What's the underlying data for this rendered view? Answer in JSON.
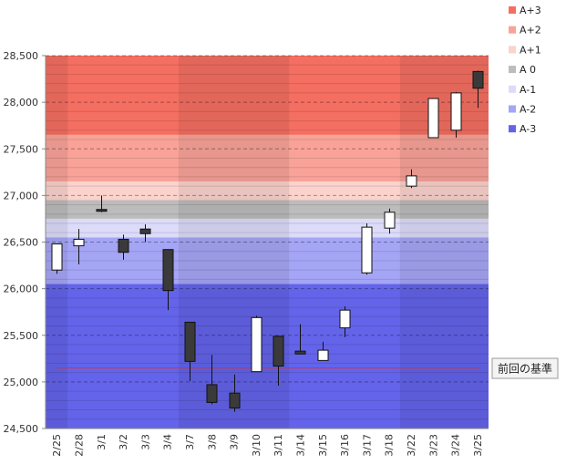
{
  "chart_data": {
    "type": "candlestick",
    "ylim": [
      24500,
      28500
    ],
    "y_ticks": [
      "24,500",
      "25,000",
      "25,500",
      "26,000",
      "26,500",
      "27,000",
      "27,500",
      "28,000",
      "28,500"
    ],
    "y_tick_values": [
      24500,
      25000,
      25500,
      26000,
      26500,
      27000,
      27500,
      28000,
      28500
    ],
    "categories": [
      "2/25",
      "2/28",
      "3/1",
      "3/2",
      "3/3",
      "3/4",
      "3/7",
      "3/8",
      "3/9",
      "3/10",
      "3/11",
      "3/14",
      "3/15",
      "3/16",
      "3/17",
      "3/18",
      "3/22",
      "3/23",
      "3/24",
      "3/25"
    ],
    "candles": [
      {
        "open": 26200,
        "close": 26480,
        "high": 26480,
        "low": 26160
      },
      {
        "open": 26460,
        "close": 26530,
        "high": 26640,
        "low": 26260
      },
      {
        "open": 26850,
        "close": 26830,
        "high": 27000,
        "low": 26820
      },
      {
        "open": 26530,
        "close": 26390,
        "high": 26580,
        "low": 26310
      },
      {
        "open": 26640,
        "close": 26590,
        "high": 26690,
        "low": 26500
      },
      {
        "open": 26420,
        "close": 25980,
        "high": 26420,
        "low": 25770
      },
      {
        "open": 25640,
        "close": 25220,
        "high": 25640,
        "low": 25010
      },
      {
        "open": 24970,
        "close": 24780,
        "high": 25290,
        "low": 24760
      },
      {
        "open": 24880,
        "close": 24720,
        "high": 25080,
        "low": 24680
      },
      {
        "open": 25110,
        "close": 25690,
        "high": 25710,
        "low": 25110
      },
      {
        "open": 25490,
        "close": 25170,
        "high": 25490,
        "low": 24960
      },
      {
        "open": 25330,
        "close": 25300,
        "high": 25620,
        "low": 25300
      },
      {
        "open": 25230,
        "close": 25340,
        "high": 25430,
        "low": 25230
      },
      {
        "open": 25580,
        "close": 25770,
        "high": 25810,
        "low": 25480
      },
      {
        "open": 26170,
        "close": 26660,
        "high": 26700,
        "low": 26150
      },
      {
        "open": 26650,
        "close": 26820,
        "high": 26860,
        "low": 26590
      },
      {
        "open": 27100,
        "close": 27210,
        "high": 27280,
        "low": 27080
      },
      {
        "open": 27620,
        "close": 28040,
        "high": 28040,
        "low": 27620
      },
      {
        "open": 27700,
        "close": 28100,
        "high": 28110,
        "low": 27620
      },
      {
        "open": 28330,
        "close": 28150,
        "high": 28340,
        "low": 27940
      }
    ],
    "bands": [
      {
        "name": "A+3",
        "from": 27650,
        "to": 28500,
        "color": "#f46f61"
      },
      {
        "name": "A+2",
        "from": 27150,
        "to": 27650,
        "color": "#f9a398"
      },
      {
        "name": "A+1",
        "from": 26950,
        "to": 27150,
        "color": "#fbd2cc"
      },
      {
        "name": "A 0",
        "from": 26750,
        "to": 26950,
        "color": "#bcbcbc"
      },
      {
        "name": "A-1",
        "from": 26550,
        "to": 26750,
        "color": "#dcdcfa"
      },
      {
        "name": "A-2",
        "from": 26050,
        "to": 26550,
        "color": "#a5a5f6"
      },
      {
        "name": "A-3",
        "from": 24500,
        "to": 26050,
        "color": "#6464ea"
      }
    ],
    "legend": [
      {
        "label": "A+3",
        "color": "#f46f61"
      },
      {
        "label": "A+2",
        "color": "#f9a398"
      },
      {
        "label": "A+1",
        "color": "#fbd2cc"
      },
      {
        "label": "A 0",
        "color": "#bcbcbc"
      },
      {
        "label": "A-1",
        "color": "#dcdcfa"
      },
      {
        "label": "A-2",
        "color": "#a5a5f6"
      },
      {
        "label": "A-3",
        "color": "#6464ea"
      }
    ],
    "reference_line": {
      "value": 25150,
      "label": "前回の基準",
      "color": "#e03030"
    },
    "week_shade_groups": [
      [
        0,
        0
      ],
      [
        1,
        5
      ],
      [
        6,
        10
      ],
      [
        11,
        15
      ],
      [
        16,
        19
      ]
    ],
    "legend_position": "top-right"
  }
}
